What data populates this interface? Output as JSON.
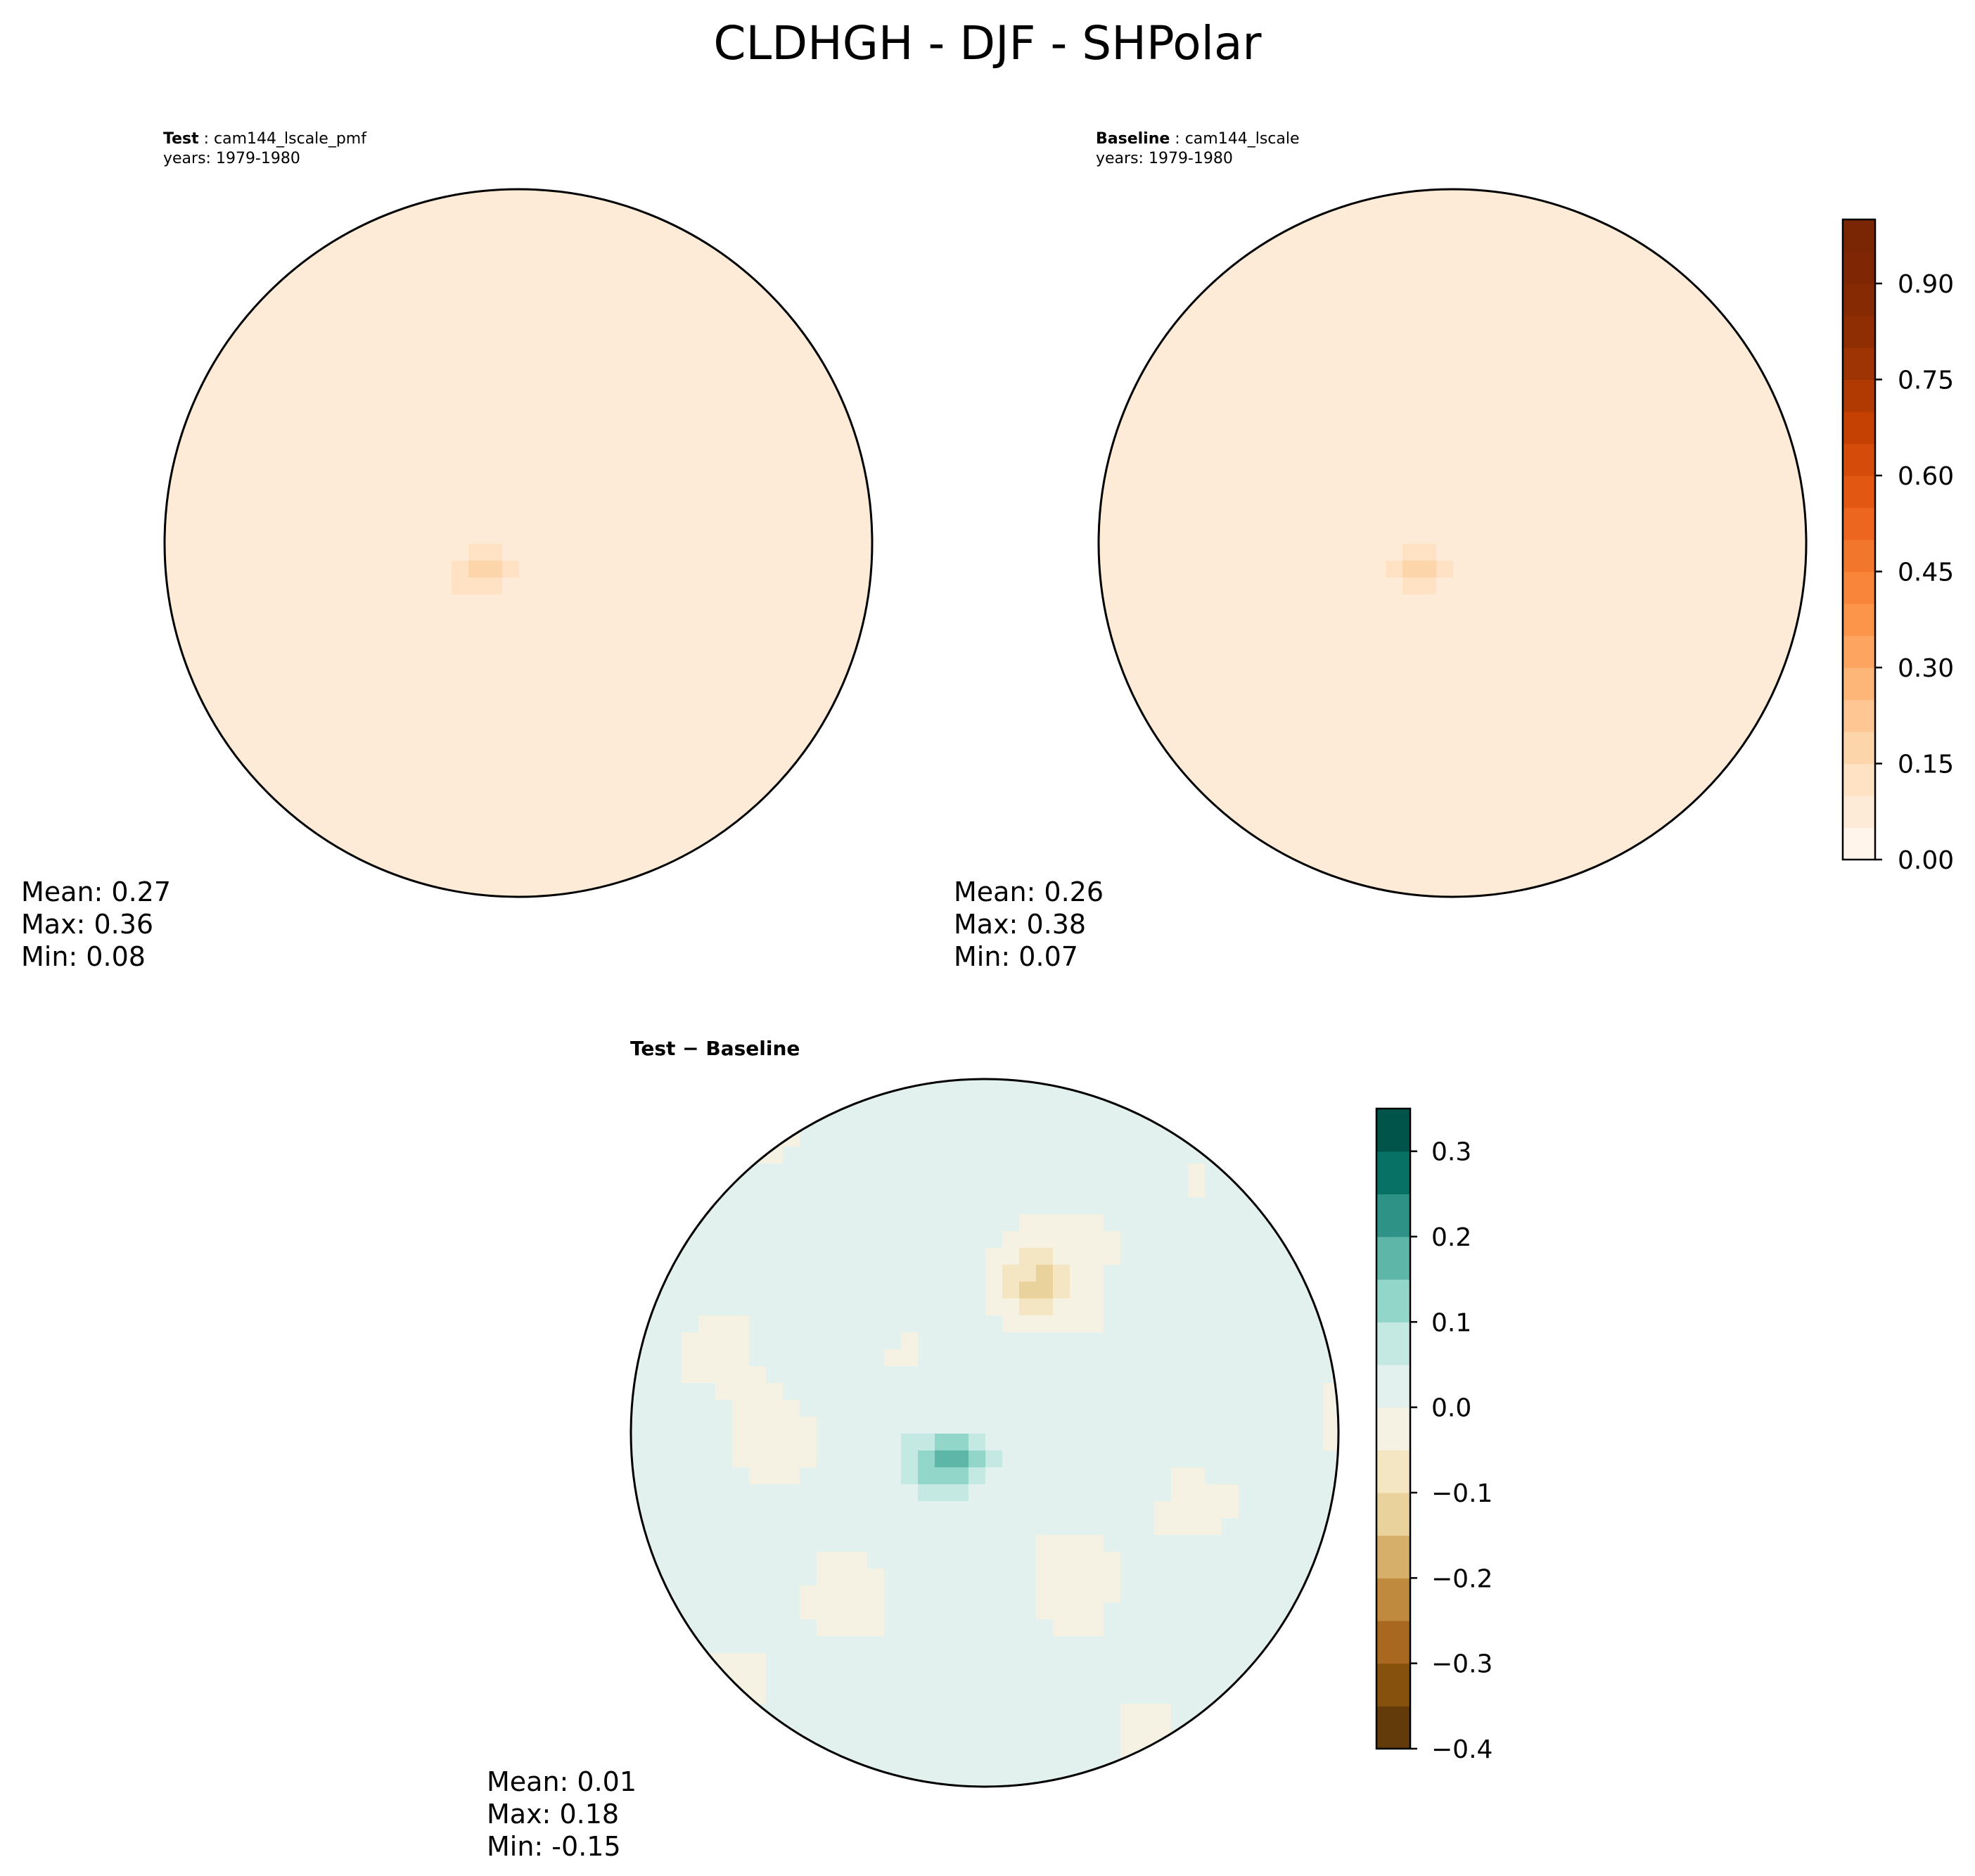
{
  "chart_data": {
    "title": "CLDHGH - DJF - SHPolar",
    "panels": [
      {
        "type": "heatmap",
        "projection": "south-polar-stereographic",
        "label": "Test",
        "case": "cam144_lscale_pmf",
        "years": "years: 1979-1980",
        "stats": {
          "mean": "Mean:  0.27",
          "max": "Max:  0.36",
          "min": "Min:  0.08"
        },
        "mean": 0.27,
        "max": 0.36,
        "min": 0.08
      },
      {
        "type": "heatmap",
        "projection": "south-polar-stereographic",
        "label": "Baseline",
        "case": "cam144_lscale",
        "years": "years: 1979-1980",
        "stats": {
          "mean": "Mean:  0.26",
          "max": "Max:  0.38",
          "min": "Min:  0.07"
        },
        "mean": 0.26,
        "max": 0.38,
        "min": 0.07
      },
      {
        "type": "heatmap",
        "projection": "south-polar-stereographic",
        "label": "Test − Baseline",
        "stats": {
          "mean": "Mean:  0.01",
          "max": "Max:  0.18",
          "min": "Min: -0.15"
        },
        "mean": 0.01,
        "max": 0.18,
        "min": -0.15
      }
    ],
    "colorbars": [
      {
        "name": "main",
        "range": [
          0.0,
          1.0
        ],
        "levels": [
          0.0,
          0.05,
          0.1,
          0.15,
          0.2,
          0.25,
          0.3,
          0.35,
          0.4,
          0.45,
          0.5,
          0.55,
          0.6,
          0.65,
          0.7,
          0.75,
          0.8,
          0.85,
          0.9,
          0.95,
          1.0
        ],
        "ticks": [
          0.0,
          0.15,
          0.3,
          0.45,
          0.6,
          0.75,
          0.9
        ],
        "tick_labels": [
          "0.00",
          "0.15",
          "0.30",
          "0.45",
          "0.60",
          "0.75",
          "0.90"
        ],
        "colors": [
          "#fff5eb",
          "#feebd7",
          "#fee2c3",
          "#fdd5ab",
          "#fdc692",
          "#fdb678",
          "#fda560",
          "#fc9549",
          "#f8853a",
          "#f3762d",
          "#ec6620",
          "#e25813",
          "#d54b0a",
          "#c44103",
          "#b13a03",
          "#9e3303",
          "#8f2d03",
          "#862a04",
          "#7f2704",
          "#7a2503"
        ]
      },
      {
        "name": "diff",
        "range": [
          -0.4,
          0.35
        ],
        "levels": [
          -0.4,
          -0.35,
          -0.3,
          -0.25,
          -0.2,
          -0.15,
          -0.1,
          -0.05,
          0.0,
          0.05,
          0.1,
          0.15,
          0.2,
          0.25,
          0.3,
          0.35
        ],
        "ticks": [
          -0.4,
          -0.3,
          -0.2,
          -0.1,
          0.0,
          0.1,
          0.2,
          0.3
        ],
        "tick_labels": [
          "−0.4",
          "−0.3",
          "−0.2",
          "−0.1",
          "0.0",
          "0.1",
          "0.2",
          "0.3"
        ],
        "colors": [
          "#633a0a",
          "#86500d",
          "#a8681f",
          "#c08a3e",
          "#d6b06a",
          "#e9d29c",
          "#f4e6c2",
          "#f5f1e3",
          "#e3f1ee",
          "#c4e9e2",
          "#92d5c9",
          "#5eb6a9",
          "#2f9286",
          "#087166",
          "#01544a"
        ]
      }
    ]
  }
}
